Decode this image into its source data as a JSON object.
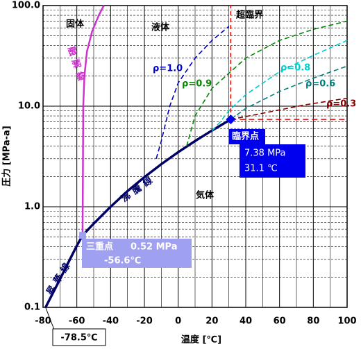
{
  "chart_data": {
    "type": "line",
    "log_y": true,
    "grid": true,
    "xlabel": "温度 [℃]",
    "ylabel": "圧力 [MPa-a]",
    "xlim": [
      -80,
      100
    ],
    "ylim": [
      0.1,
      100
    ],
    "xticks": [
      -80,
      -60,
      -40,
      -20,
      0,
      20,
      40,
      60,
      80,
      100
    ],
    "xminor": [
      -70,
      -50,
      -30,
      -10,
      10,
      30,
      50,
      70,
      90
    ],
    "yticks": [
      0.1,
      {
        "value": 1,
        "label": "1.0"
      },
      {
        "value": 10,
        "label": "10.0"
      },
      {
        "value": 100,
        "label": "100.0"
      }
    ],
    "yminor": [
      0.2,
      0.3,
      0.4,
      0.5,
      0.6,
      0.7,
      0.8,
      0.9,
      2,
      3,
      4,
      5,
      6,
      7,
      8,
      9,
      20,
      30,
      40,
      50,
      60,
      70,
      80,
      90
    ],
    "regions": [
      "固体",
      "液体",
      "超臨界",
      "気体"
    ],
    "series": [
      {
        "name": "昇華線",
        "color": "#000066",
        "x": [
          -78.5,
          -70,
          -65,
          -60,
          -56.6
        ],
        "values": [
          0.1,
          0.19,
          0.28,
          0.41,
          0.52
        ]
      },
      {
        "name": "沸騰線",
        "color": "#000066",
        "x": [
          -56.6,
          -50,
          -40,
          -30,
          -20,
          -10,
          0,
          10,
          20,
          31.1
        ],
        "values": [
          0.52,
          0.68,
          1.0,
          1.43,
          1.97,
          2.65,
          3.49,
          4.5,
          5.73,
          7.38
        ]
      },
      {
        "name": "融解線",
        "color": "#cc33cc",
        "x": [
          -56.6,
          -56.5,
          -56.2,
          -55.5,
          -54,
          -51,
          -47,
          -44
        ],
        "values": [
          0.52,
          1,
          10,
          20,
          35,
          55,
          80,
          100
        ]
      },
      {
        "name": "ρ=1.0",
        "color": "#0000cc",
        "dashed": true,
        "x": [
          -13,
          -10,
          -5,
          0,
          10,
          20,
          30
        ],
        "values": [
          3,
          4.5,
          10,
          17,
          30,
          45,
          62
        ]
      },
      {
        "name": "ρ=0.9",
        "color": "#008800",
        "dashed": true,
        "x": [
          5,
          10,
          20,
          40,
          60,
          80,
          100
        ],
        "values": [
          4,
          8,
          15,
          30,
          45,
          58,
          70
        ]
      },
      {
        "name": "ρ=0.8",
        "color": "#00cccc",
        "dashed": true,
        "x": [
          20,
          25,
          30,
          40,
          60,
          80,
          100
        ],
        "values": [
          5.7,
          7,
          9,
          13,
          22,
          32,
          45
        ]
      },
      {
        "name": "ρ=0.6",
        "color": "#008080",
        "dashed": true,
        "x": [
          31.1,
          40,
          60,
          80,
          100
        ],
        "values": [
          7.38,
          9.5,
          14,
          19,
          25
        ]
      },
      {
        "name": "ρ=0.3",
        "color": "#800000",
        "dashed": true,
        "x": [
          31.1,
          50,
          75,
          100
        ],
        "values": [
          7.38,
          8.5,
          10.3,
          12
        ]
      }
    ],
    "triple_point": {
      "name": "三重点",
      "x": -56.6,
      "y": 0.52,
      "y_label": "0.52 MPa",
      "x_label": "-56.6℃"
    },
    "critical_point": {
      "name": "臨界点",
      "x": 31.1,
      "y": 7.38,
      "y_label": "7.38 MPa",
      "x_label": "31.1 ℃"
    },
    "sublimation_point": {
      "x": -78.5,
      "label": "-78.5℃"
    }
  }
}
